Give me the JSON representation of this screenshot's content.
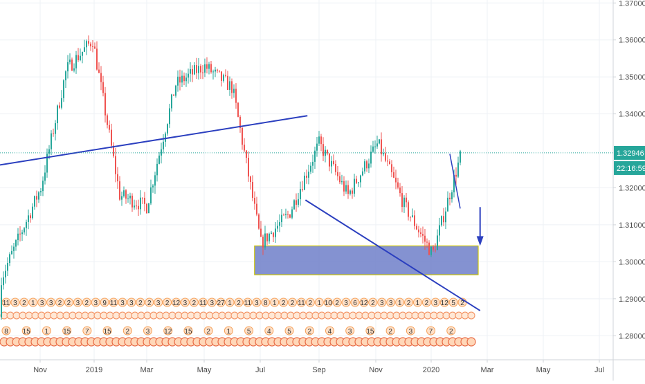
{
  "chart_data": {
    "type": "candlestick",
    "symbol_hint": "",
    "x_labels": [
      "Nov",
      "2019",
      "Mar",
      "May",
      "Jul",
      "Sep",
      "Nov",
      "2020",
      "Mar",
      "May",
      "Jul"
    ],
    "y_ticks": [
      "1.37000",
      "1.36000",
      "1.35000",
      "1.34000",
      "1.32000",
      "1.31000",
      "1.30000",
      "1.29000",
      "1.28000"
    ],
    "ylim": [
      1.2735,
      1.3708
    ],
    "current_price": "1.32946",
    "countdown": "22:16:59",
    "grid": true,
    "colors": {
      "up": "#26a69a",
      "down": "#ef5350",
      "trendline": "#2b3fbf",
      "zone_fill": "#6f7fc9",
      "zone_border": "#c9c200",
      "price_tag": "#26a69a",
      "grid": "#eef1f5",
      "axis_border": "#cfd3d8"
    },
    "timeline_months": [
      "2018-10",
      "2018-11",
      "2018-12",
      "2019-01",
      "2019-02",
      "2019-03",
      "2019-04",
      "2019-05",
      "2019-06",
      "2019-07",
      "2019-08",
      "2019-09",
      "2019-10",
      "2019-11",
      "2019-12",
      "2020-01",
      "2020-02"
    ],
    "monthly_close_path": [
      1.285,
      1.32,
      1.352,
      1.36,
      1.318,
      1.315,
      1.348,
      1.353,
      1.347,
      1.305,
      1.313,
      1.332,
      1.318,
      1.332,
      1.315,
      1.302,
      1.329
    ],
    "annotations": {
      "upper_trendline": {
        "from": [
          "2019-08-20",
          1.3395
        ],
        "to": [
          "2020-03-20",
          1.3262
        ]
      },
      "lower_trendline": {
        "from": [
          "2019-08-18",
          1.3167
        ],
        "to": [
          "2020-02-22",
          1.2868
        ]
      },
      "support_zone": {
        "x_from": "2019-06-25",
        "x_to": "2020-02-20",
        "y_low": 1.2965,
        "y_high": 1.3043
      },
      "projection_line": {
        "from": [
          "2020-01-20",
          1.3292
        ],
        "to": [
          "2020-02-01",
          1.3144
        ]
      },
      "down_arrow": {
        "at": "2020-02-22",
        "y_from": 1.3148,
        "y_to": 1.3043
      }
    },
    "event_rows": [
      [
        "11",
        "3",
        "2",
        "1",
        "3",
        "3",
        "2",
        "2",
        "3",
        "2",
        "3",
        "9",
        "11",
        "3",
        "3",
        "2",
        "2",
        "3",
        "2",
        "12",
        "3",
        "2",
        "11",
        "3",
        "27",
        "1",
        "2",
        "11",
        "3",
        "8",
        "1",
        "2",
        "2",
        "11",
        "2",
        "1",
        "10",
        "2",
        "3",
        "6",
        "12",
        "2",
        "3",
        "3",
        "1",
        "2",
        "1",
        "2",
        "3",
        "12",
        "5",
        "2"
      ],
      [
        "8",
        "15",
        "1",
        "15",
        "7",
        "15",
        "2",
        "3",
        "12",
        "15",
        "2",
        "1",
        "5",
        "4",
        "5",
        "2",
        "4",
        "3",
        "15",
        "2",
        "3",
        "7",
        "2"
      ]
    ]
  }
}
